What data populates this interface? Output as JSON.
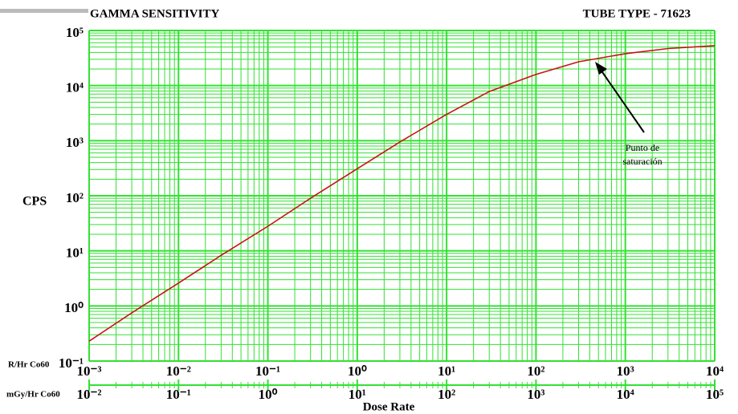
{
  "chart_data": {
    "type": "line",
    "title": "GAMMA SENSITIVITY",
    "subtitle": "TUBE TYPE - 71623",
    "y_label": "CPS",
    "x_label": "Dose Rate",
    "x_axis_name": "R/Hr Co60",
    "x2_axis_name": "mGy/Hr Co60",
    "annotation": [
      "Punto de",
      "saturación"
    ],
    "xscale": "log",
    "yscale": "log",
    "grid": true,
    "grid_color": "#33e033",
    "color": "#cc1111",
    "x": [
      0.001,
      0.003,
      0.01,
      0.03,
      0.1,
      0.3,
      1,
      3,
      10,
      30,
      100,
      300,
      1000,
      3000,
      10000
    ],
    "values": [
      0.23,
      0.75,
      2.6,
      8.3,
      28,
      90,
      310,
      950,
      3000,
      7800,
      16000,
      27000,
      38000,
      47000,
      53000
    ],
    "xlim": [
      0.001,
      10000
    ],
    "xticks": [
      {
        "value": 0.001,
        "label": "10⁻³"
      },
      {
        "value": 0.01,
        "label": "10⁻²"
      },
      {
        "value": 0.1,
        "label": "10⁻¹"
      },
      {
        "value": 1,
        "label": "10⁰"
      },
      {
        "value": 10,
        "label": "10¹"
      },
      {
        "value": 100,
        "label": "10²"
      },
      {
        "value": 1000,
        "label": "10³"
      },
      {
        "value": 10000,
        "label": "10⁴"
      }
    ],
    "ylim": [
      0.1,
      100000
    ],
    "yticks": [
      {
        "value": 0.1,
        "label": "10⁻¹"
      },
      {
        "value": 1,
        "label": "10⁰"
      },
      {
        "value": 10,
        "label": "10¹"
      },
      {
        "value": 100,
        "label": "10²"
      },
      {
        "value": 1000,
        "label": "10³"
      },
      {
        "value": 10000,
        "label": "10⁴"
      },
      {
        "value": 100000,
        "label": "10⁵"
      }
    ],
    "x2lim": [
      0.01,
      100000
    ],
    "x2ticks": [
      {
        "value": 0.01,
        "label": "10⁻²"
      },
      {
        "value": 0.1,
        "label": "10⁻¹"
      },
      {
        "value": 1,
        "label": "10⁰"
      },
      {
        "value": 10,
        "label": "10¹"
      },
      {
        "value": 100,
        "label": "10²"
      },
      {
        "value": 1000,
        "label": "10³"
      },
      {
        "value": 10000,
        "label": "10⁴"
      },
      {
        "value": 100000,
        "label": "10⁵"
      }
    ]
  }
}
